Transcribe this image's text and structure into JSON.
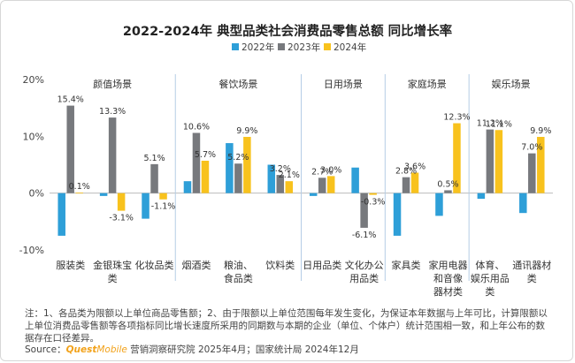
{
  "title": "2022-2024年  典型品类社会消费品零售总额  同比增长率",
  "notes": "注：1、各品类为限额以上单位商品零售额；2、由于限额以上单位范围每年发生变化，为保证本年数据与上年可比，计算限额以上单位消费品零售额等各项指标同比增长速度所采用的同期数与本期的企业（单位、个体户）统计范围相一致，和上年公布的数据存在口径差异。",
  "source": {
    "prefix": "Source：",
    "logo_quest": "Quest",
    "logo_mobile": "Mobile",
    "suffix": " 营销洞察研究院 2025年4月；国家统计局 2024年12月"
  },
  "colors": {
    "2022年": "#2e9fd8",
    "2023年": "#77797d",
    "2024年": "#f8c21d",
    "divider": "#b5cde6",
    "axis": "#bbbbbb"
  },
  "chart_data": {
    "type": "bar",
    "ylim": [
      -10,
      20
    ],
    "yticks": [
      "20%",
      "10%",
      "0%",
      "-10%"
    ],
    "legend_position": "top",
    "series": [
      {
        "name": "2022年",
        "values": [
          -7.5,
          -0.5,
          -4.5,
          2.1,
          8.8,
          5.0,
          -0.5,
          4.5,
          -7.5,
          -4.0,
          -1.0,
          -3.5
        ]
      },
      {
        "name": "2023年",
        "values": [
          15.4,
          13.3,
          5.1,
          10.6,
          5.2,
          3.2,
          2.7,
          -6.1,
          2.8,
          0.5,
          11.2,
          7.0
        ]
      },
      {
        "name": "2024年",
        "values": [
          0.1,
          -3.1,
          -1.1,
          5.7,
          9.9,
          2.1,
          3.0,
          -0.3,
          3.6,
          12.3,
          11.1,
          9.9
        ]
      }
    ],
    "categories": [
      "服装类",
      "金银珠宝类",
      "化妆品类",
      "烟酒类",
      "粮油、食品类",
      "饮料类",
      "日用品类",
      "文化办公用品类",
      "家具类",
      "家用电器和音像器材类",
      "体育、娱乐用品类",
      "通讯器材类"
    ],
    "category_lines": [
      [
        "服装类"
      ],
      [
        "金银珠宝",
        "类"
      ],
      [
        "化妆品类"
      ],
      [
        "烟酒类"
      ],
      [
        "粮油、",
        "食品类"
      ],
      [
        "饮料类"
      ],
      [
        "日用品类"
      ],
      [
        "文化办公",
        "用品类"
      ],
      [
        "家具类"
      ],
      [
        "家用电器",
        "和音像",
        "器材类"
      ],
      [
        "体育、",
        "娱乐用品",
        "类"
      ],
      [
        "通讯器材",
        "类"
      ]
    ],
    "groups": [
      {
        "label": "颜值场景",
        "size": 3
      },
      {
        "label": "餐饮场景",
        "size": 3
      },
      {
        "label": "日用场景",
        "size": 2
      },
      {
        "label": "家庭场景",
        "size": 2
      },
      {
        "label": "娱乐场景",
        "size": 2
      }
    ],
    "data_labels": [
      {
        "category": 0,
        "series": "2023年",
        "text": "15.4%"
      },
      {
        "category": 0,
        "series": "2024年",
        "text": "0.1%"
      },
      {
        "category": 1,
        "series": "2023年",
        "text": "13.3%"
      },
      {
        "category": 1,
        "series": "2024年",
        "text": "-3.1%"
      },
      {
        "category": 2,
        "series": "2023年",
        "text": "5.1%"
      },
      {
        "category": 2,
        "series": "2024年",
        "text": "-1.1%"
      },
      {
        "category": 3,
        "series": "2023年",
        "text": "10.6%"
      },
      {
        "category": 3,
        "series": "2024年",
        "text": "5.7%"
      },
      {
        "category": 4,
        "series": "2023年",
        "text": "5.2%"
      },
      {
        "category": 4,
        "series": "2024年",
        "text": "9.9%"
      },
      {
        "category": 5,
        "series": "2023年",
        "text": "3.2%"
      },
      {
        "category": 5,
        "series": "2024年",
        "text": "2.1%"
      },
      {
        "category": 6,
        "series": "2023年",
        "text": "2.7%"
      },
      {
        "category": 6,
        "series": "2024年",
        "text": "3.0%"
      },
      {
        "category": 7,
        "series": "2023年",
        "text": "-6.1%"
      },
      {
        "category": 7,
        "series": "2024年",
        "text": "-0.3%"
      },
      {
        "category": 8,
        "series": "2023年",
        "text": "2.8%"
      },
      {
        "category": 8,
        "series": "2024年",
        "text": "3.6%"
      },
      {
        "category": 9,
        "series": "2023年",
        "text": "0.5%"
      },
      {
        "category": 9,
        "series": "2024年",
        "text": "12.3%"
      },
      {
        "category": 10,
        "series": "2023年",
        "text": "11.2%"
      },
      {
        "category": 10,
        "series": "2024年",
        "text": "11.1%"
      },
      {
        "category": 11,
        "series": "2023年",
        "text": "7.0%"
      },
      {
        "category": 11,
        "series": "2024年",
        "text": "9.9%"
      }
    ]
  }
}
